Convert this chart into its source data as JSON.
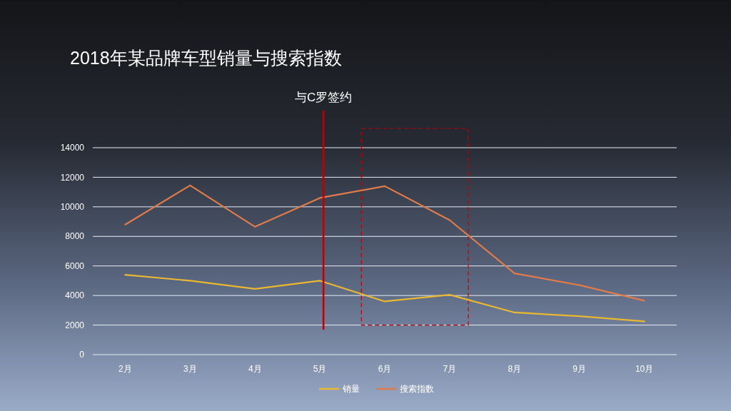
{
  "chart_data": {
    "type": "line",
    "title": "2018年某品牌车型销量与搜索指数",
    "categories": [
      "2月",
      "3月",
      "4月",
      "5月",
      "6月",
      "7月",
      "8月",
      "9月",
      "10月"
    ],
    "series": [
      {
        "name": "销量",
        "color": "#e8b830",
        "values": [
          5400,
          5000,
          4450,
          5000,
          3600,
          4050,
          2850,
          2600,
          2250
        ]
      },
      {
        "name": "搜索指数",
        "color": "#e07b4a",
        "values": [
          8800,
          11450,
          8650,
          10600,
          11400,
          9100,
          5500,
          4700,
          3650
        ]
      }
    ],
    "ylim": [
      0,
      14000
    ],
    "yticks": [
      0,
      2000,
      4000,
      6000,
      8000,
      10000,
      12000,
      14000
    ],
    "grid": "y",
    "legend": "bottom",
    "marker": "none",
    "line_style": "solid",
    "ref_lines": [
      {
        "axis": "x",
        "value": "5月",
        "label": "与C罗签约",
        "color": "#c00000"
      }
    ]
  }
}
